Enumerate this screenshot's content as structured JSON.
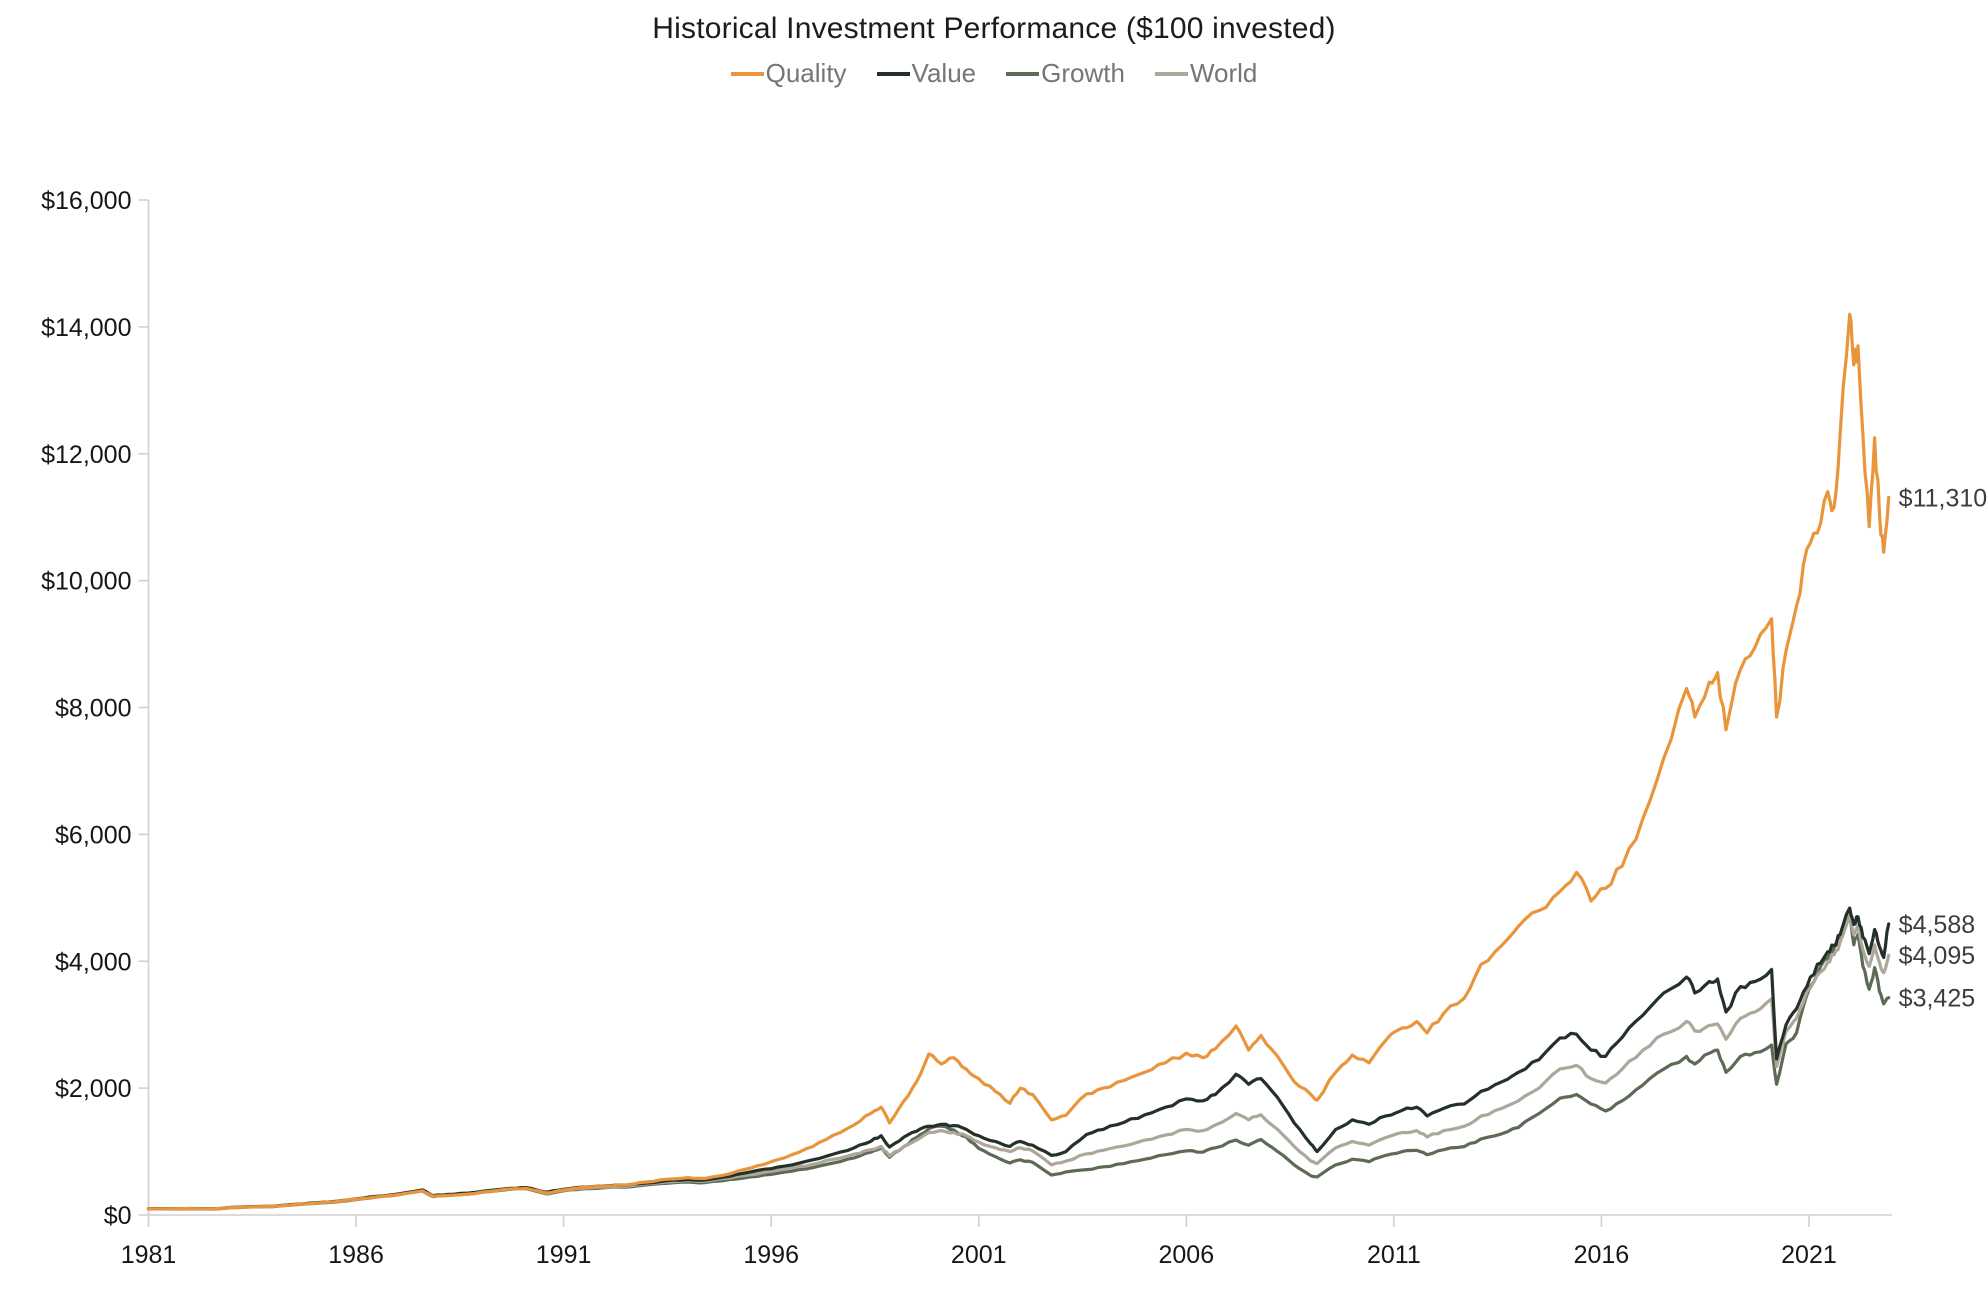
{
  "header": {
    "title": "Historical Investment Performance ($100 invested)"
  },
  "legend": {
    "items": [
      {
        "label": "Quality",
        "color": "#E8953C"
      },
      {
        "label": "Value",
        "color": "#233129"
      },
      {
        "label": "Growth",
        "color": "#5D6A56"
      },
      {
        "label": "World",
        "color": "#ACA79A"
      }
    ]
  },
  "chart_data": {
    "type": "line",
    "title": "Historical Investment Performance ($100 invested)",
    "xlabel": "",
    "ylabel": "",
    "grid": false,
    "legend_position": "top-center",
    "axis_color": "#d0d0d0",
    "label_color": "#161616",
    "end_label_color": "#3d3d3d",
    "x_axis": {
      "range": [
        1981,
        2023
      ],
      "tick_years": [
        1981,
        1986,
        1991,
        1996,
        2001,
        2006,
        2011,
        2016,
        2021
      ],
      "tick_labels": [
        "1981",
        "1986",
        "1991",
        "1996",
        "2001",
        "2006",
        "2011",
        "2016",
        "2021"
      ]
    },
    "y_axis": {
      "range": [
        0,
        16000
      ],
      "tick_values": [
        0,
        2000,
        4000,
        6000,
        8000,
        10000,
        12000,
        14000,
        16000
      ],
      "tick_labels": [
        "$0",
        "$2,000",
        "$4,000",
        "$6,000",
        "$8,000",
        "$10,000",
        "$12,000",
        "$14,000",
        "$16,000"
      ]
    },
    "x_years": [
      1981.0,
      1981.5,
      1982.0,
      1982.6,
      1983.0,
      1983.5,
      1984.0,
      1984.6,
      1985.0,
      1985.5,
      1986.0,
      1986.5,
      1987.0,
      1987.6,
      1987.85,
      1988.2,
      1988.7,
      1989.2,
      1989.7,
      1990.1,
      1990.6,
      1991.0,
      1991.5,
      1992.0,
      1992.5,
      1993.0,
      1993.5,
      1994.0,
      1994.4,
      1995.0,
      1995.5,
      1996.0,
      1996.5,
      1997.0,
      1997.5,
      1998.0,
      1998.4,
      1998.65,
      1998.85,
      1999.2,
      1999.5,
      1999.8,
      2000.1,
      2000.4,
      2000.7,
      2001.0,
      2001.4,
      2001.75,
      2002.0,
      2002.3,
      2002.75,
      2003.1,
      2003.6,
      2004.0,
      2004.5,
      2005.0,
      2005.5,
      2006.0,
      2006.4,
      2006.7,
      2007.2,
      2007.5,
      2007.8,
      2008.2,
      2008.6,
      2009.0,
      2009.15,
      2009.6,
      2010.0,
      2010.4,
      2010.8,
      2011.2,
      2011.55,
      2011.8,
      2012.2,
      2012.7,
      2013.1,
      2013.6,
      2014.0,
      2014.5,
      2015.0,
      2015.4,
      2015.75,
      2016.1,
      2016.5,
      2017.0,
      2017.5,
      2018.05,
      2018.25,
      2018.6,
      2018.8,
      2019.0,
      2019.35,
      2019.7,
      2020.1,
      2020.22,
      2020.45,
      2020.7,
      2020.95,
      2021.2,
      2021.45,
      2021.6,
      2021.75,
      2021.98,
      2022.08,
      2022.18,
      2022.3,
      2022.45,
      2022.58,
      2022.7,
      2022.8,
      2022.92
    ],
    "series": [
      {
        "name": "Quality",
        "color": "#E8953C",
        "end_label": "$11,310",
        "end_value": 11310,
        "values": [
          100,
          98,
          101,
          96,
          118,
          130,
          135,
          168,
          185,
          210,
          250,
          285,
          320,
          382,
          295,
          310,
          330,
          370,
          410,
          420,
          345,
          395,
          435,
          460,
          475,
          520,
          565,
          590,
          575,
          650,
          740,
          840,
          950,
          1080,
          1260,
          1420,
          1600,
          1700,
          1450,
          1800,
          2100,
          2540,
          2380,
          2480,
          2300,
          2150,
          1950,
          1760,
          2000,
          1900,
          1500,
          1570,
          1910,
          2000,
          2120,
          2250,
          2400,
          2550,
          2480,
          2620,
          2980,
          2600,
          2830,
          2500,
          2100,
          1900,
          1810,
          2250,
          2520,
          2400,
          2750,
          2950,
          3050,
          2870,
          3180,
          3420,
          3950,
          4250,
          4550,
          4800,
          5100,
          5400,
          4950,
          5150,
          5500,
          6250,
          7200,
          8300,
          7850,
          8400,
          8550,
          7650,
          8600,
          8950,
          9400,
          7850,
          8900,
          9600,
          10500,
          10750,
          11400,
          11150,
          12300,
          14200,
          13400,
          13700,
          12300,
          10850,
          12250,
          11050,
          10450,
          11310
        ]
      },
      {
        "name": "Value",
        "color": "#233129",
        "end_label": "$4,588",
        "end_value": 4588,
        "values": [
          100,
          98,
          102,
          97,
          120,
          133,
          139,
          172,
          190,
          215,
          255,
          295,
          330,
          395,
          305,
          325,
          345,
          385,
          420,
          432,
          360,
          405,
          440,
          460,
          470,
          505,
          540,
          560,
          550,
          610,
          680,
          730,
          790,
          870,
          960,
          1060,
          1160,
          1250,
          1070,
          1230,
          1320,
          1400,
          1430,
          1410,
          1350,
          1250,
          1160,
          1080,
          1160,
          1100,
          940,
          1000,
          1270,
          1350,
          1460,
          1580,
          1700,
          1830,
          1800,
          1900,
          2220,
          2060,
          2150,
          1850,
          1450,
          1120,
          1000,
          1350,
          1500,
          1430,
          1560,
          1650,
          1700,
          1560,
          1680,
          1750,
          1950,
          2100,
          2250,
          2450,
          2790,
          2850,
          2600,
          2500,
          2800,
          3150,
          3500,
          3750,
          3500,
          3680,
          3720,
          3200,
          3600,
          3680,
          3870,
          2460,
          3000,
          3250,
          3600,
          3950,
          4150,
          4250,
          4420,
          4840,
          4580,
          4700,
          4380,
          4120,
          4500,
          4230,
          4060,
          4588
        ]
      },
      {
        "name": "Growth",
        "color": "#5D6A56",
        "end_label": "$3,425",
        "end_value": 3425,
        "values": [
          100,
          96,
          99,
          94,
          115,
          127,
          133,
          166,
          182,
          203,
          242,
          283,
          318,
          380,
          290,
          308,
          328,
          368,
          405,
          415,
          332,
          382,
          415,
          430,
          438,
          475,
          500,
          520,
          510,
          560,
          600,
          640,
          690,
          745,
          820,
          900,
          990,
          1060,
          910,
          1080,
          1220,
          1360,
          1400,
          1340,
          1230,
          1050,
          920,
          820,
          870,
          830,
          630,
          680,
          715,
          760,
          810,
          880,
          950,
          1010,
          990,
          1060,
          1180,
          1100,
          1190,
          1000,
          790,
          620,
          600,
          790,
          880,
          840,
          940,
          1000,
          1020,
          950,
          1030,
          1080,
          1200,
          1280,
          1380,
          1600,
          1841,
          1900,
          1750,
          1640,
          1800,
          2050,
          2300,
          2500,
          2380,
          2550,
          2600,
          2250,
          2500,
          2560,
          2680,
          2060,
          2700,
          2870,
          3470,
          3800,
          4050,
          4200,
          4380,
          4700,
          4260,
          4420,
          3920,
          3560,
          3900,
          3520,
          3330,
          3425
        ]
      },
      {
        "name": "World",
        "color": "#ACA79A",
        "end_label": "$4,095",
        "end_value": 4095,
        "values": [
          100,
          97,
          100,
          95,
          117,
          130,
          136,
          170,
          186,
          208,
          248,
          290,
          325,
          390,
          298,
          318,
          338,
          378,
          415,
          425,
          340,
          390,
          425,
          440,
          450,
          490,
          520,
          540,
          530,
          585,
          635,
          690,
          740,
          800,
          880,
          960,
          1030,
          1080,
          930,
          1080,
          1180,
          1300,
          1330,
          1300,
          1250,
          1150,
          1060,
          1000,
          1060,
          1010,
          790,
          850,
          965,
          1020,
          1090,
          1180,
          1260,
          1350,
          1330,
          1420,
          1600,
          1500,
          1580,
          1350,
          1080,
          850,
          810,
          1060,
          1160,
          1100,
          1220,
          1300,
          1330,
          1230,
          1330,
          1400,
          1560,
          1680,
          1800,
          2000,
          2302,
          2360,
          2150,
          2080,
          2300,
          2600,
          2850,
          3050,
          2900,
          2990,
          3010,
          2770,
          3100,
          3200,
          3410,
          2340,
          2900,
          3100,
          3520,
          3780,
          3990,
          4100,
          4300,
          4760,
          4420,
          4560,
          4180,
          3920,
          4260,
          3980,
          3820,
          4095
        ]
      }
    ],
    "z_order": [
      "Growth",
      "World",
      "Value",
      "Quality"
    ]
  }
}
